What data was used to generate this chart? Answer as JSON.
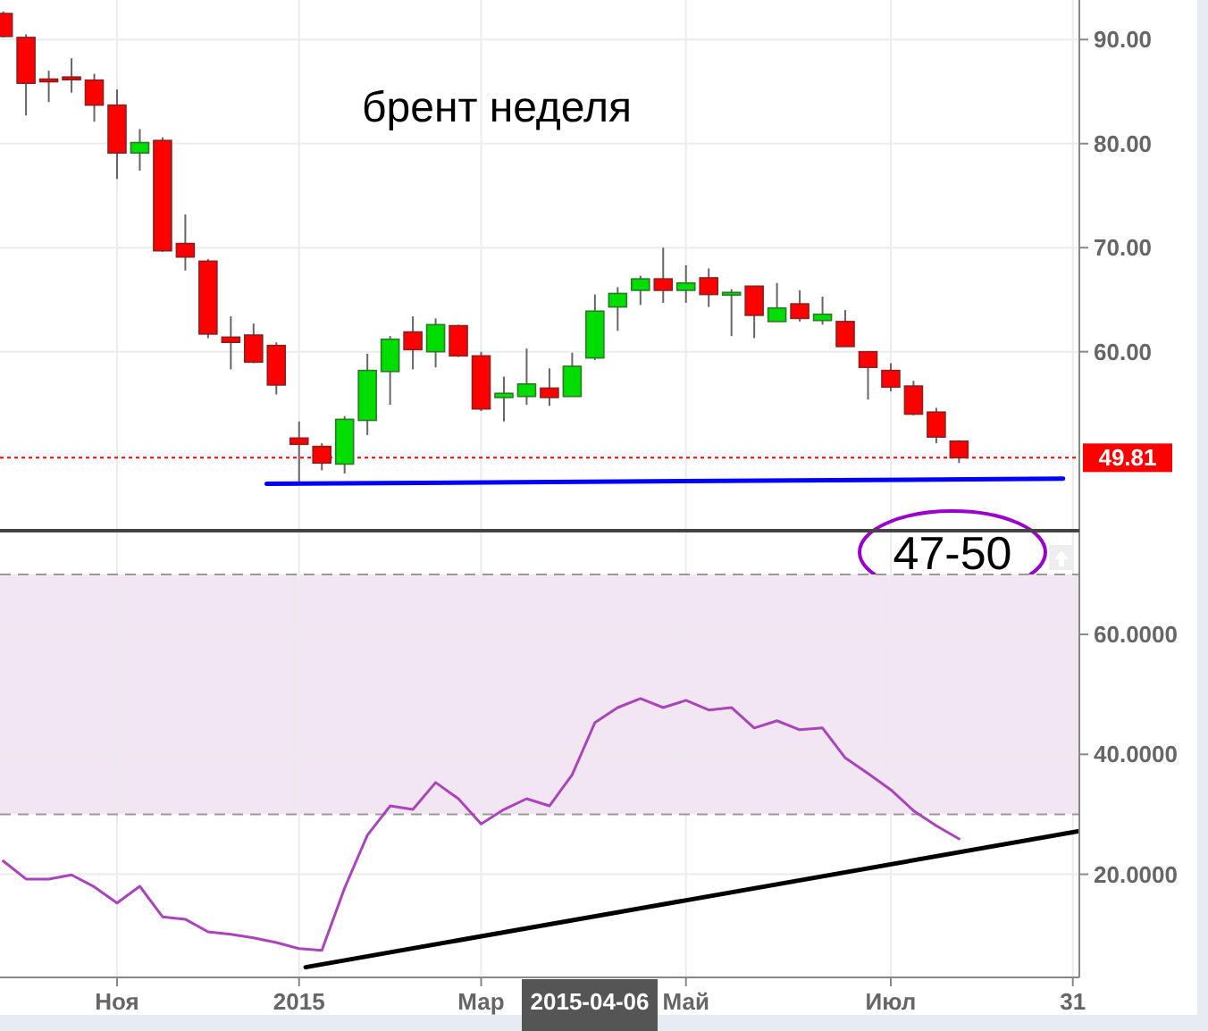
{
  "chart_data": [
    {
      "type": "candlestick",
      "title": "брент неделя",
      "x": [
        "2014-10-06",
        "2014-10-13",
        "2014-10-20",
        "2014-10-27",
        "2014-11-03",
        "2014-11-10",
        "2014-11-17",
        "2014-11-24",
        "2014-12-01",
        "2014-12-08",
        "2014-12-15",
        "2014-12-22",
        "2014-12-29",
        "2015-01-05",
        "2015-01-12",
        "2015-01-19",
        "2015-01-26",
        "2015-02-02",
        "2015-02-09",
        "2015-02-16",
        "2015-02-23",
        "2015-03-02",
        "2015-03-09",
        "2015-03-16",
        "2015-03-23",
        "2015-03-30",
        "2015-04-06",
        "2015-04-13",
        "2015-04-20",
        "2015-04-27",
        "2015-05-04",
        "2015-05-11",
        "2015-05-18",
        "2015-05-25",
        "2015-06-01",
        "2015-06-08",
        "2015-06-15",
        "2015-06-22",
        "2015-06-29",
        "2015-07-06",
        "2015-07-13",
        "2015-07-20",
        "2015-07-27"
      ],
      "ohlc": [
        [
          92.5,
          92.7,
          90.2,
          90.3
        ],
        [
          90.2,
          90.5,
          82.7,
          85.8
        ],
        [
          86.2,
          87,
          84,
          86
        ],
        [
          86.4,
          88.2,
          84.9,
          86.2
        ],
        [
          86.1,
          86.7,
          82.1,
          83.7
        ],
        [
          83.7,
          85.2,
          76.6,
          79.1
        ],
        [
          79.1,
          81.4,
          77.4,
          80.1
        ],
        [
          80.3,
          80.6,
          69.6,
          69.7
        ],
        [
          70.4,
          73.2,
          67.8,
          69.1
        ],
        [
          68.7,
          68.9,
          61.3,
          61.7
        ],
        [
          61.4,
          63.4,
          58.3,
          60.9
        ],
        [
          61.6,
          62.7,
          58.9,
          59
        ],
        [
          60.6,
          60.9,
          55.9,
          56.8
        ],
        [
          51.7,
          53.3,
          47.4,
          51.1
        ],
        [
          50.9,
          51.2,
          48.6,
          49.3
        ],
        [
          49.2,
          53.8,
          48.3,
          53.5
        ],
        [
          53.4,
          59.8,
          52,
          58.2
        ],
        [
          58.1,
          61.5,
          54.9,
          61.2
        ],
        [
          61.9,
          63.4,
          58.3,
          60.2
        ],
        [
          60,
          63.2,
          58.5,
          62.6
        ],
        [
          62.5,
          62.6,
          59.5,
          59.6
        ],
        [
          59.6,
          60,
          54.3,
          54.5
        ],
        [
          55.6,
          57.6,
          53.3,
          56
        ],
        [
          55.7,
          60.3,
          54.9,
          56.9
        ],
        [
          56.5,
          58.4,
          54.8,
          55.6
        ],
        [
          55.7,
          59.9,
          55.7,
          58.6
        ],
        [
          59.4,
          65.5,
          59.2,
          63.9
        ],
        [
          64.3,
          66.2,
          62,
          65.6
        ],
        [
          65.9,
          67.3,
          64.5,
          67
        ],
        [
          67,
          70,
          64.7,
          65.9
        ],
        [
          65.9,
          68.3,
          64.7,
          66.6
        ],
        [
          67.1,
          68,
          64.3,
          65.5
        ],
        [
          65.5,
          66,
          61.5,
          65.7
        ],
        [
          66.3,
          66.3,
          61.3,
          63.5
        ],
        [
          62.9,
          66.6,
          62.9,
          64.2
        ],
        [
          64.6,
          65.9,
          62.9,
          63.2
        ],
        [
          63,
          65.3,
          62.6,
          63.6
        ],
        [
          62.9,
          64,
          60.5,
          60.5
        ],
        [
          60,
          60,
          55.4,
          58.5
        ],
        [
          58.2,
          58.9,
          56.2,
          56.6
        ],
        [
          56.7,
          57.2,
          53.9,
          54
        ],
        [
          54.2,
          54.6,
          51.2,
          51.8
        ],
        [
          51.4,
          51.5,
          49.3,
          49.81
        ]
      ],
      "series": [
        {
          "type": "line",
          "color": "#0000ff",
          "x": [
            "2014-12-26",
            "2015-08-28"
          ],
          "values": [
            47.3,
            47.8
          ]
        }
      ],
      "xlim": [
        "2014-10-05",
        "2015-09-02"
      ],
      "xticks": [
        {
          "value": "2014-11-10",
          "label": null
        },
        {
          "value": "2015-01-05",
          "label": null
        },
        {
          "value": "2015-03-02",
          "label": null
        },
        {
          "value": "2015-05-04",
          "label": null
        },
        {
          "value": "2015-07-06",
          "label": null
        },
        {
          "value": "2015-08-31",
          "label": null
        }
      ],
      "ylim": [
        42.8,
        93.8
      ],
      "yticks": [
        {
          "value": 60,
          "label": "60.00"
        },
        {
          "value": 70,
          "label": "70.00"
        },
        {
          "value": 80,
          "label": "80.00"
        },
        {
          "value": 90,
          "label": "90.00"
        }
      ],
      "ref_lines": [
        {
          "axis": "y",
          "value": 49.81,
          "label": "49.81",
          "color": "#ff0000",
          "line_style": "dotted"
        }
      ],
      "annotations": [
        "47-50"
      ],
      "grid": true,
      "tick_labels": "y"
    },
    {
      "type": "line",
      "x": [
        "2014-10-06",
        "2014-10-13",
        "2014-10-20",
        "2014-10-27",
        "2014-11-03",
        "2014-11-10",
        "2014-11-17",
        "2014-11-24",
        "2014-12-01",
        "2014-12-08",
        "2014-12-15",
        "2014-12-22",
        "2014-12-29",
        "2015-01-05",
        "2015-01-12",
        "2015-01-19",
        "2015-01-26",
        "2015-02-02",
        "2015-02-09",
        "2015-02-16",
        "2015-02-23",
        "2015-03-02",
        "2015-03-09",
        "2015-03-16",
        "2015-03-23",
        "2015-03-30",
        "2015-04-06",
        "2015-04-13",
        "2015-04-20",
        "2015-04-27",
        "2015-05-04",
        "2015-05-11",
        "2015-05-18",
        "2015-05-25",
        "2015-06-01",
        "2015-06-08",
        "2015-06-15",
        "2015-06-22",
        "2015-06-29",
        "2015-07-06",
        "2015-07-13",
        "2015-07-20",
        "2015-07-27"
      ],
      "series": [
        {
          "color": "#aa44bb",
          "values": [
            22.2,
            19.2,
            19.2,
            19.9,
            17.9,
            15.2,
            18,
            12.9,
            12.5,
            10.4,
            10,
            9.4,
            8.6,
            7.6,
            7.3,
            17.7,
            26.5,
            31.4,
            30.8,
            35.3,
            32.6,
            28.4,
            30.8,
            32.6,
            31.4,
            36.6,
            45.3,
            47.8,
            49.3,
            47.8,
            49,
            47.4,
            47.8,
            44.4,
            45.6,
            44.1,
            44.4,
            39.4,
            36.8,
            34.1,
            30.6,
            28.1,
            25.9
          ]
        },
        {
          "type": "line",
          "color": "#000000",
          "x": [
            "2015-01-07",
            "2015-09-02"
          ],
          "values": [
            4.5,
            27.2
          ]
        }
      ],
      "xlim": [
        "2014-10-05",
        "2015-09-02"
      ],
      "xticks": [
        {
          "value": "2014-11-10",
          "label": "Ноя"
        },
        {
          "value": "2015-01-05",
          "label": "2015"
        },
        {
          "value": "2015-03-02",
          "label": "Мар"
        },
        {
          "value": "2015-05-04",
          "label": "Май"
        },
        {
          "value": "2015-07-06",
          "label": "Июл"
        },
        {
          "value": "2015-08-31",
          "label": "31"
        }
      ],
      "ylim": [
        2.8,
        77.3
      ],
      "yticks": [
        {
          "value": 20,
          "label": "20.0000"
        },
        {
          "value": 40,
          "label": "40.0000"
        },
        {
          "value": 60,
          "label": "60.0000"
        }
      ],
      "bands": [
        {
          "axis": "y",
          "from": 30,
          "to": 70,
          "color": "#f2e6f3"
        }
      ],
      "ref_lines": [
        {
          "axis": "y",
          "value": 30,
          "color": "#999999",
          "line_style": "dashed"
        },
        {
          "axis": "y",
          "value": 70,
          "color": "#999999",
          "line_style": "dashed"
        }
      ],
      "annotations": [
        "2015-04-06"
      ],
      "grid": true
    }
  ]
}
